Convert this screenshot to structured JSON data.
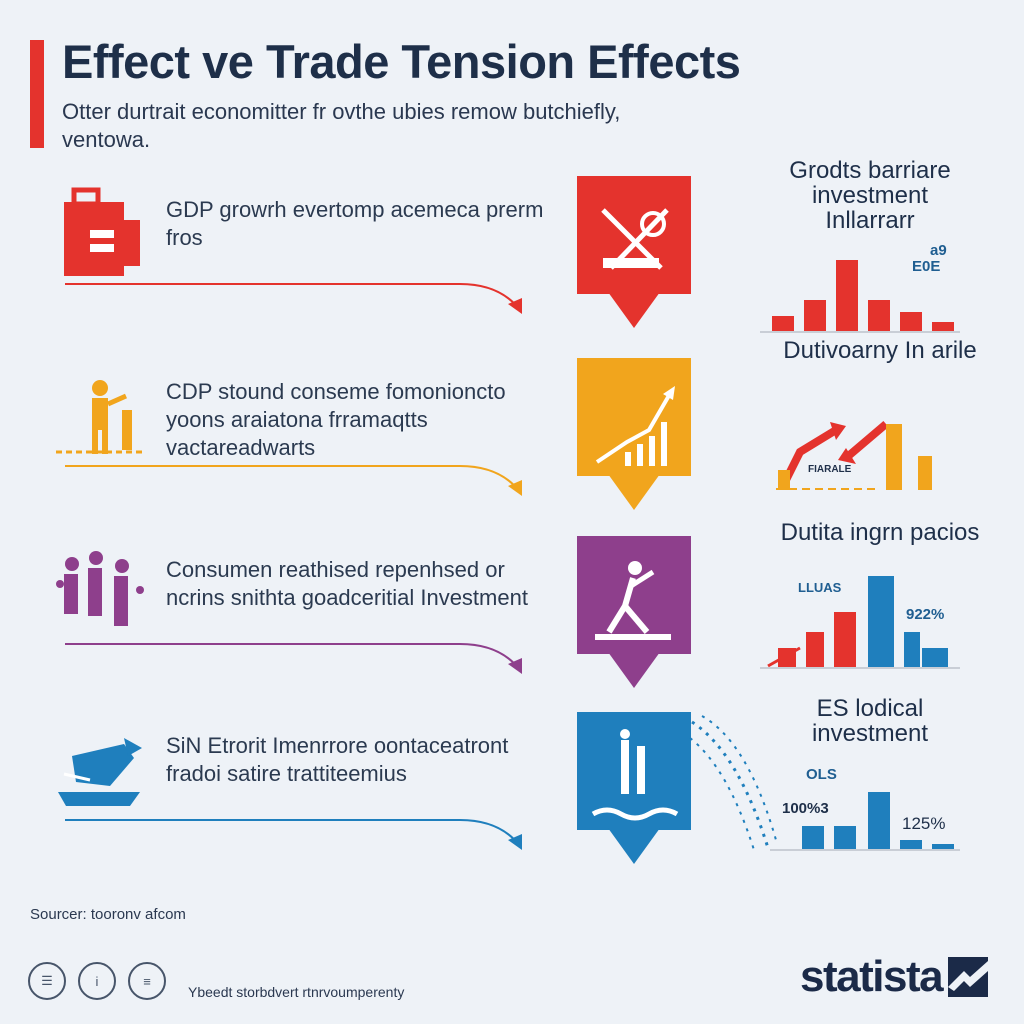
{
  "header": {
    "title": "Effect  ve Trade Tension Effects",
    "subtitle": "Otter durtrait economitter fr ovthe ubies remow butchiefly, ventowa."
  },
  "rows": [
    {
      "color": "#e4332d",
      "icon": "briefcase-icon",
      "text": "GDP growrh evertomp acemeca prerm fros",
      "tile_icon": "tools-icon",
      "side_title": "Grodts barriare investment Inllarrarr",
      "mini_labels": [
        "a9",
        "E0E"
      ]
    },
    {
      "color": "#f1a51d",
      "icon": "worker-icon",
      "text": "CDP stound conseme fomonioncto yoons araiatona frramaqtts vactareadwarts",
      "tile_icon": "growth-chart-icon",
      "side_title": "Dutivoarny In arile",
      "mini_labels": [
        "FIARALE"
      ]
    },
    {
      "color": "#8e3f8c",
      "icon": "crowd-icon",
      "text": "Consumen reathised repenhsed or ncrins snithta goadceritial Investment",
      "tile_icon": "athlete-icon",
      "side_title": "Dutita ingrn pacios",
      "mini_labels": [
        "LLUAS",
        "922%"
      ]
    },
    {
      "color": "#1f7fbd",
      "icon": "ship-icon",
      "text": "SiN Etrorit Imenrrore oontaceatront fradoi satire trattiteemius",
      "tile_icon": "wave-icon",
      "side_title": "ES lodical investment",
      "mini_labels": [
        "OLS",
        "100%3",
        "125%"
      ]
    }
  ],
  "footer": {
    "source": "Sourcer: tooronv afcom",
    "note": "Ybeedt storbdvert rtnrvoumperenty",
    "logo": "statista"
  }
}
